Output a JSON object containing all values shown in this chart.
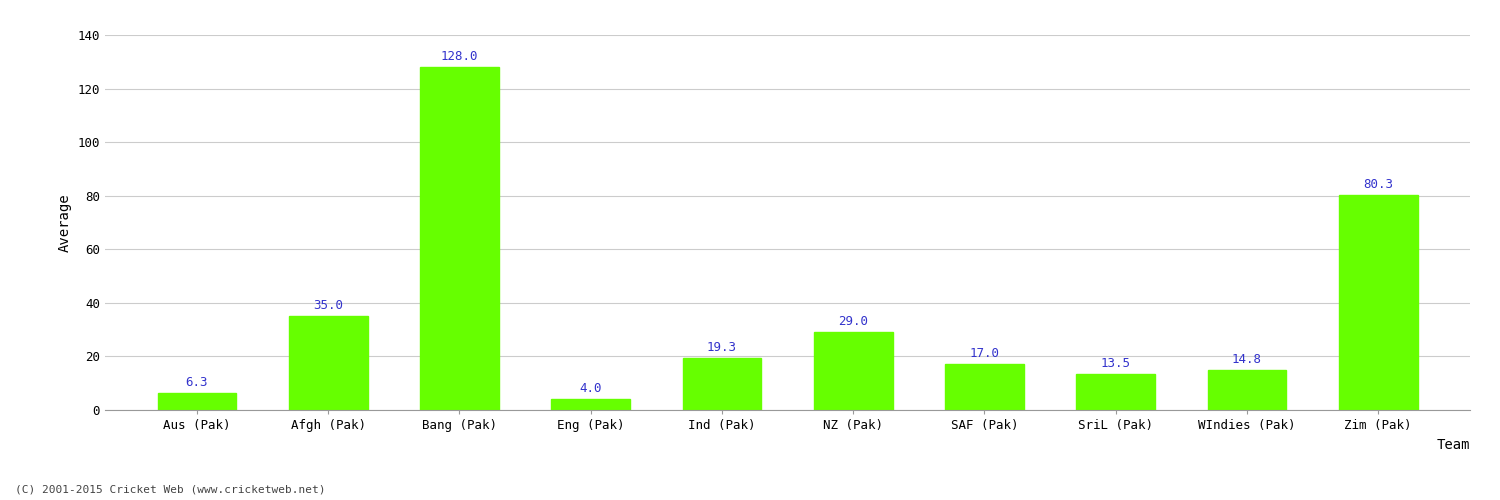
{
  "categories": [
    "Aus (Pak)",
    "Afgh (Pak)",
    "Bang (Pak)",
    "Eng (Pak)",
    "Ind (Pak)",
    "NZ (Pak)",
    "SAF (Pak)",
    "SriL (Pak)",
    "WIndies (Pak)",
    "Zim (Pak)"
  ],
  "values": [
    6.3,
    35.0,
    128.0,
    4.0,
    19.3,
    29.0,
    17.0,
    13.5,
    14.8,
    80.3
  ],
  "bar_color": "#66ff00",
  "bar_edge_color": "#66ff00",
  "label_color": "#3333cc",
  "xlabel": "Team",
  "ylabel": "Average",
  "ylim": [
    0,
    140
  ],
  "yticks": [
    0,
    20,
    40,
    60,
    80,
    100,
    120,
    140
  ],
  "grid_color": "#cccccc",
  "background_color": "#ffffff",
  "fig_background_color": "#ffffff",
  "label_fontsize": 9,
  "axis_label_fontsize": 10,
  "tick_fontsize": 9,
  "bar_width": 0.6,
  "footer_text": "(C) 2001-2015 Cricket Web (www.cricketweb.net)"
}
